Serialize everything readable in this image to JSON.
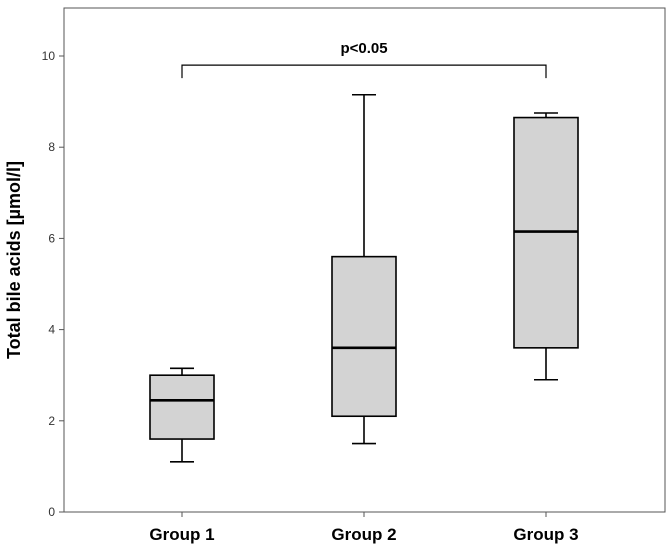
{
  "chart_data": {
    "type": "box",
    "ylabel": "Total bile acids [µmol/l]",
    "xlabel": "",
    "ylim": [
      0,
      11
    ],
    "yticks": [
      0,
      2,
      4,
      6,
      8,
      10
    ],
    "grid": false,
    "categories": [
      "Group 1",
      "Group 2",
      "Group 3"
    ],
    "boxes": [
      {
        "category": "Group 1",
        "min": 1.1,
        "q1": 1.6,
        "median": 2.45,
        "q3": 3.0,
        "max": 3.15
      },
      {
        "category": "Group 2",
        "min": 1.5,
        "q1": 2.1,
        "median": 3.6,
        "q3": 5.6,
        "max": 9.15
      },
      {
        "category": "Group 3",
        "min": 2.9,
        "q1": 3.6,
        "median": 6.15,
        "q3": 8.65,
        "max": 8.75
      }
    ],
    "annotation": {
      "label": "p<0.05",
      "from": "Group 1",
      "to": "Group 3",
      "y": 9.8
    },
    "colors": {
      "box_fill": "#d3d3d3",
      "stroke": "#000000",
      "frame": "#555555"
    }
  }
}
